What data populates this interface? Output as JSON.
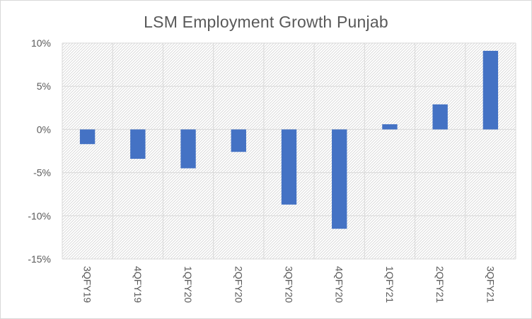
{
  "chart_data": {
    "type": "bar",
    "title": "LSM Employment Growth Punjab",
    "xlabel": "",
    "ylabel": "",
    "categories": [
      "3QFY19",
      "4QFY19",
      "1QFY20",
      "2QFY20",
      "3QFY20",
      "4QFY20",
      "1QFY21",
      "2QFY21",
      "3QFY21"
    ],
    "series": [
      {
        "values": [
          -1.7,
          -3.4,
          -4.5,
          -2.6,
          -8.7,
          -11.5,
          0.6,
          2.9,
          9.1
        ]
      }
    ],
    "ylim": [
      -15,
      10
    ],
    "yticks": [
      10,
      5,
      0,
      -5,
      -10,
      -15
    ],
    "ytick_labels": [
      "10%",
      "5%",
      "0%",
      "-5%",
      "-10%",
      "-15%"
    ],
    "grid": true,
    "legend": "none",
    "colors": {
      "bar": "#4472c4",
      "grid": "#d9d9d9",
      "hatch": "#d4d4d4",
      "text": "#595959"
    }
  }
}
